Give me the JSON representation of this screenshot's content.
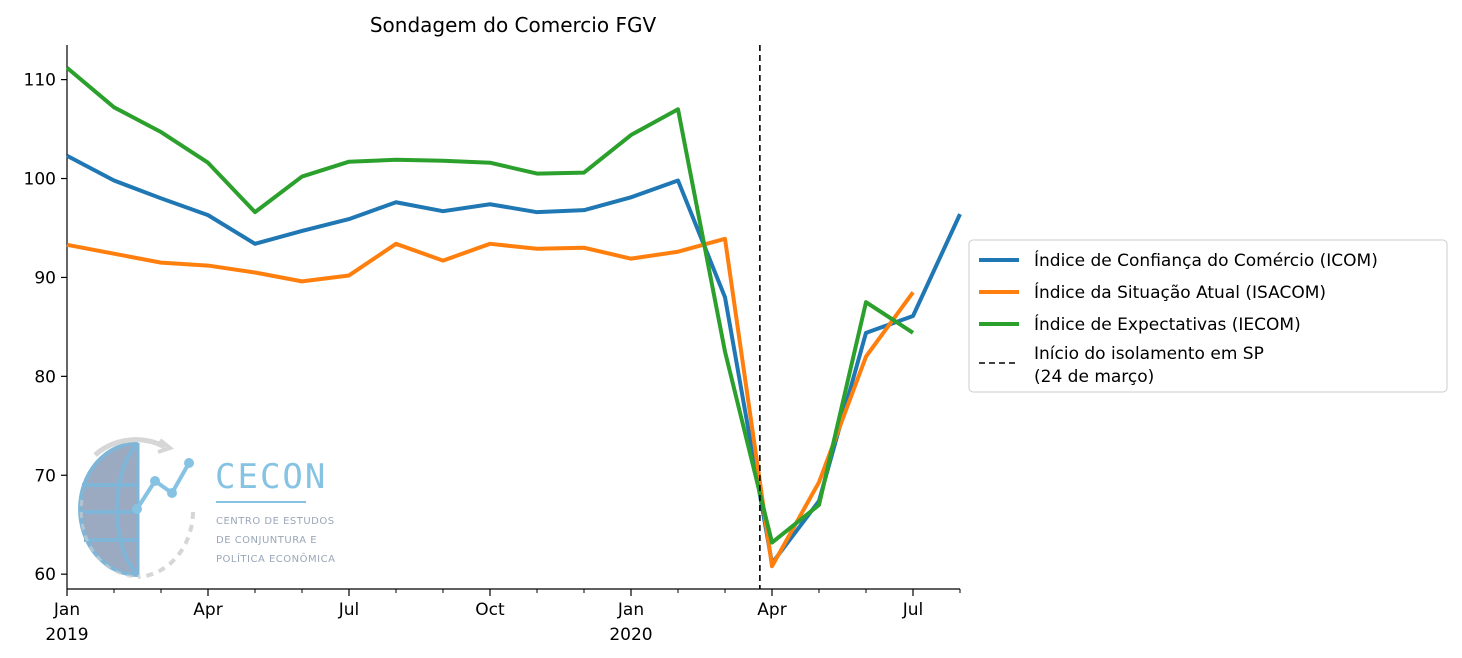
{
  "chart_data": {
    "type": "line",
    "title": "Sondagem do Comercio FGV",
    "xlabel": "",
    "ylabel": "",
    "x": [
      "2019-01",
      "2019-02",
      "2019-03",
      "2019-04",
      "2019-05",
      "2019-06",
      "2019-07",
      "2019-08",
      "2019-09",
      "2019-10",
      "2019-11",
      "2019-12",
      "2020-01",
      "2020-02",
      "2020-03",
      "2020-04",
      "2020-05",
      "2020-06",
      "2020-07",
      "2020-08"
    ],
    "xlim": [
      "2019-01",
      "2020-08"
    ],
    "ylim": [
      58.5,
      113.5
    ],
    "x_tick_labels": [
      {
        "x": "2019-01",
        "label": "Jan",
        "year": "2019"
      },
      {
        "x": "2019-04",
        "label": "Apr",
        "year": ""
      },
      {
        "x": "2019-07",
        "label": "Jul",
        "year": ""
      },
      {
        "x": "2019-10",
        "label": "Oct",
        "year": ""
      },
      {
        "x": "2020-01",
        "label": "Jan",
        "year": "2020"
      },
      {
        "x": "2020-04",
        "label": "Apr",
        "year": ""
      },
      {
        "x": "2020-07",
        "label": "Jul",
        "year": ""
      }
    ],
    "y_ticks": [
      60,
      70,
      80,
      90,
      100,
      110
    ],
    "grid": false,
    "legend_position": "outside-right",
    "series": [
      {
        "name": "Índice de Confiança do Comércio (ICOM)",
        "color": "#1f77b4",
        "values": [
          102.3,
          99.8,
          98.0,
          96.3,
          93.4,
          94.7,
          95.9,
          97.6,
          96.7,
          97.4,
          96.6,
          96.8,
          98.1,
          99.8,
          88.0,
          61.1,
          67.4,
          84.4,
          86.1,
          96.4
        ]
      },
      {
        "name": "Índice da Situação Atual (ISACOM)",
        "color": "#ff7f0e",
        "values": [
          93.3,
          92.4,
          91.5,
          91.2,
          90.5,
          89.6,
          90.2,
          93.4,
          91.7,
          93.4,
          92.9,
          93.0,
          91.9,
          92.6,
          93.9,
          60.8,
          69.3,
          82.0,
          88.5,
          null
        ]
      },
      {
        "name": "Índice de Expectativas (IECOM)",
        "color": "#2ca02c",
        "values": [
          111.2,
          107.2,
          104.7,
          101.6,
          96.6,
          100.2,
          101.7,
          101.9,
          101.8,
          101.6,
          100.5,
          100.6,
          104.4,
          107.0,
          82.5,
          63.2,
          67.0,
          87.5,
          84.4,
          null
        ]
      }
    ],
    "vline": {
      "x": "2020-03-24",
      "label_line1": "Início do isolamento em SP",
      "label_line2": "(24 de março)",
      "color": "#000000",
      "style": "dashed"
    }
  },
  "logo": {
    "name": "CECON",
    "subtitle_line1": "CENTRO DE ESTUDOS",
    "subtitle_line2": "DE CONJUNTURA E",
    "subtitle_line3": "POLÍTICA ECONÔMICA"
  }
}
